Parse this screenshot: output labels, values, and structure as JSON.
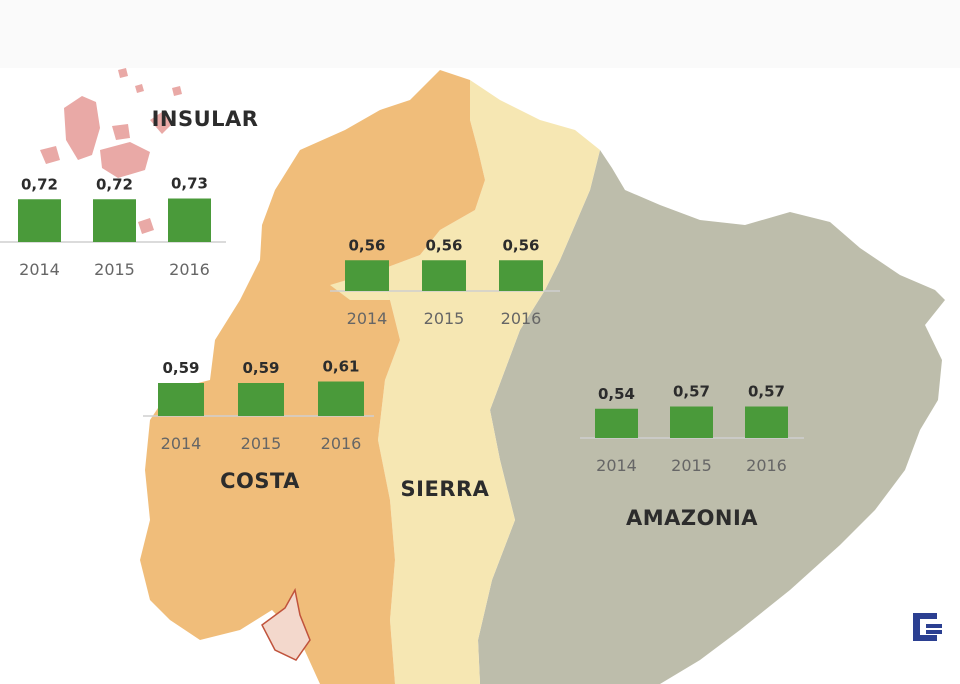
{
  "colors": {
    "background": "#fafafa",
    "costa": "#f0bd7a",
    "sierra": "#f6e7b3",
    "amazonia": "#bdbdab",
    "insular": "#e9a9a6",
    "bar": "#4a9a3a",
    "baseline": "#cfcfcf",
    "logo": "#2b3f91"
  },
  "logo": {
    "icon": "gf-logo-icon"
  },
  "chart_data": [
    {
      "type": "bar",
      "title": "INSULAR",
      "categories": [
        "2014",
        "2015",
        "2016"
      ],
      "values": [
        0.72,
        0.72,
        0.73
      ],
      "value_labels": [
        "0,72",
        "0,72",
        "0,73"
      ],
      "ylim": [
        0,
        0.8
      ]
    },
    {
      "type": "bar",
      "title": "SIERRA",
      "categories": [
        "2014",
        "2015",
        "2016"
      ],
      "values": [
        0.56,
        0.56,
        0.56
      ],
      "value_labels": [
        "0,56",
        "0,56",
        "0,56"
      ],
      "ylim": [
        0,
        0.8
      ]
    },
    {
      "type": "bar",
      "title": "COSTA",
      "categories": [
        "2014",
        "2015",
        "2016"
      ],
      "values": [
        0.59,
        0.59,
        0.61
      ],
      "value_labels": [
        "0,59",
        "0,59",
        "0,61"
      ],
      "ylim": [
        0,
        0.8
      ]
    },
    {
      "type": "bar",
      "title": "AMAZONIA",
      "categories": [
        "2014",
        "2015",
        "2016"
      ],
      "values": [
        0.54,
        0.57,
        0.57
      ],
      "value_labels": [
        "0,54",
        "0,57",
        "0,57"
      ],
      "ylim": [
        0,
        0.8
      ]
    }
  ]
}
